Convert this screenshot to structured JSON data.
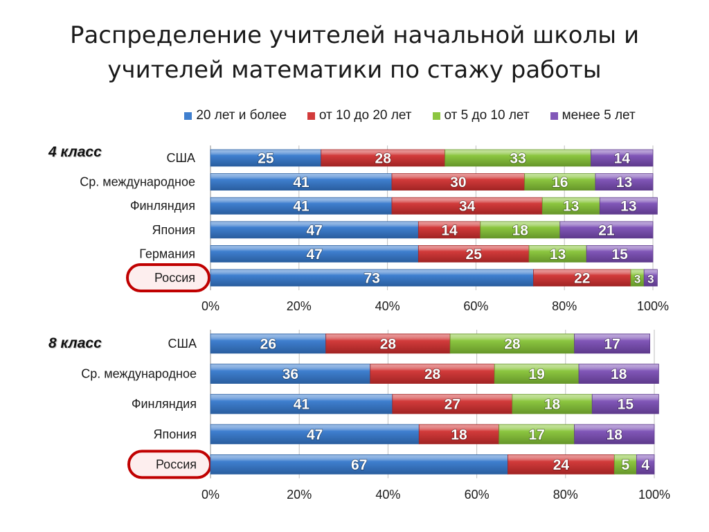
{
  "title_lines": [
    "Распределение учителей начальной школы и",
    "учителей математики по стажу работы"
  ],
  "colors": {
    "s0": "#3f7fcf",
    "s1": "#d23b3b",
    "s2": "#8cc640",
    "s3": "#8157b8",
    "highlight": "#c00000"
  },
  "chart_data": [
    {
      "type": "bar",
      "orientation": "horizontal-stacked-percent",
      "panel_label": "4 класс",
      "categories": [
        "США",
        "Ср. международное",
        "Финляндия",
        "Япония",
        "Германия",
        "Россия"
      ],
      "series": [
        {
          "name": "20 лет и более",
          "values": [
            25,
            41,
            41,
            47,
            47,
            73
          ]
        },
        {
          "name": "от 10 до 20 лет",
          "values": [
            28,
            30,
            34,
            14,
            25,
            22
          ]
        },
        {
          "name": "от 5 до 10 лет",
          "values": [
            33,
            16,
            13,
            18,
            13,
            3
          ]
        },
        {
          "name": "менее 5 лет",
          "values": [
            14,
            13,
            13,
            21,
            15,
            3
          ]
        }
      ],
      "xticks": [
        "0%",
        "20%",
        "40%",
        "60%",
        "80%",
        "100%"
      ],
      "highlighted_category": "Россия",
      "grid": true
    },
    {
      "type": "bar",
      "orientation": "horizontal-stacked-percent",
      "panel_label": "8 класс",
      "categories": [
        "США",
        "Ср. международное",
        "Финляндия",
        "Япония",
        "Россия"
      ],
      "series": [
        {
          "name": "20 лет и более",
          "values": [
            26,
            36,
            41,
            47,
            67
          ]
        },
        {
          "name": "от 10 до 20 лет",
          "values": [
            28,
            28,
            27,
            18,
            24
          ]
        },
        {
          "name": "от 5 до 10 лет",
          "values": [
            28,
            19,
            18,
            17,
            5
          ]
        },
        {
          "name": "менее 5 лет",
          "values": [
            17,
            18,
            15,
            18,
            4
          ]
        }
      ],
      "xticks": [
        "0%",
        "20%",
        "40%",
        "60%",
        "80%",
        "100%"
      ],
      "highlighted_category": "Россия",
      "grid": true
    }
  ],
  "legend_position": "top"
}
